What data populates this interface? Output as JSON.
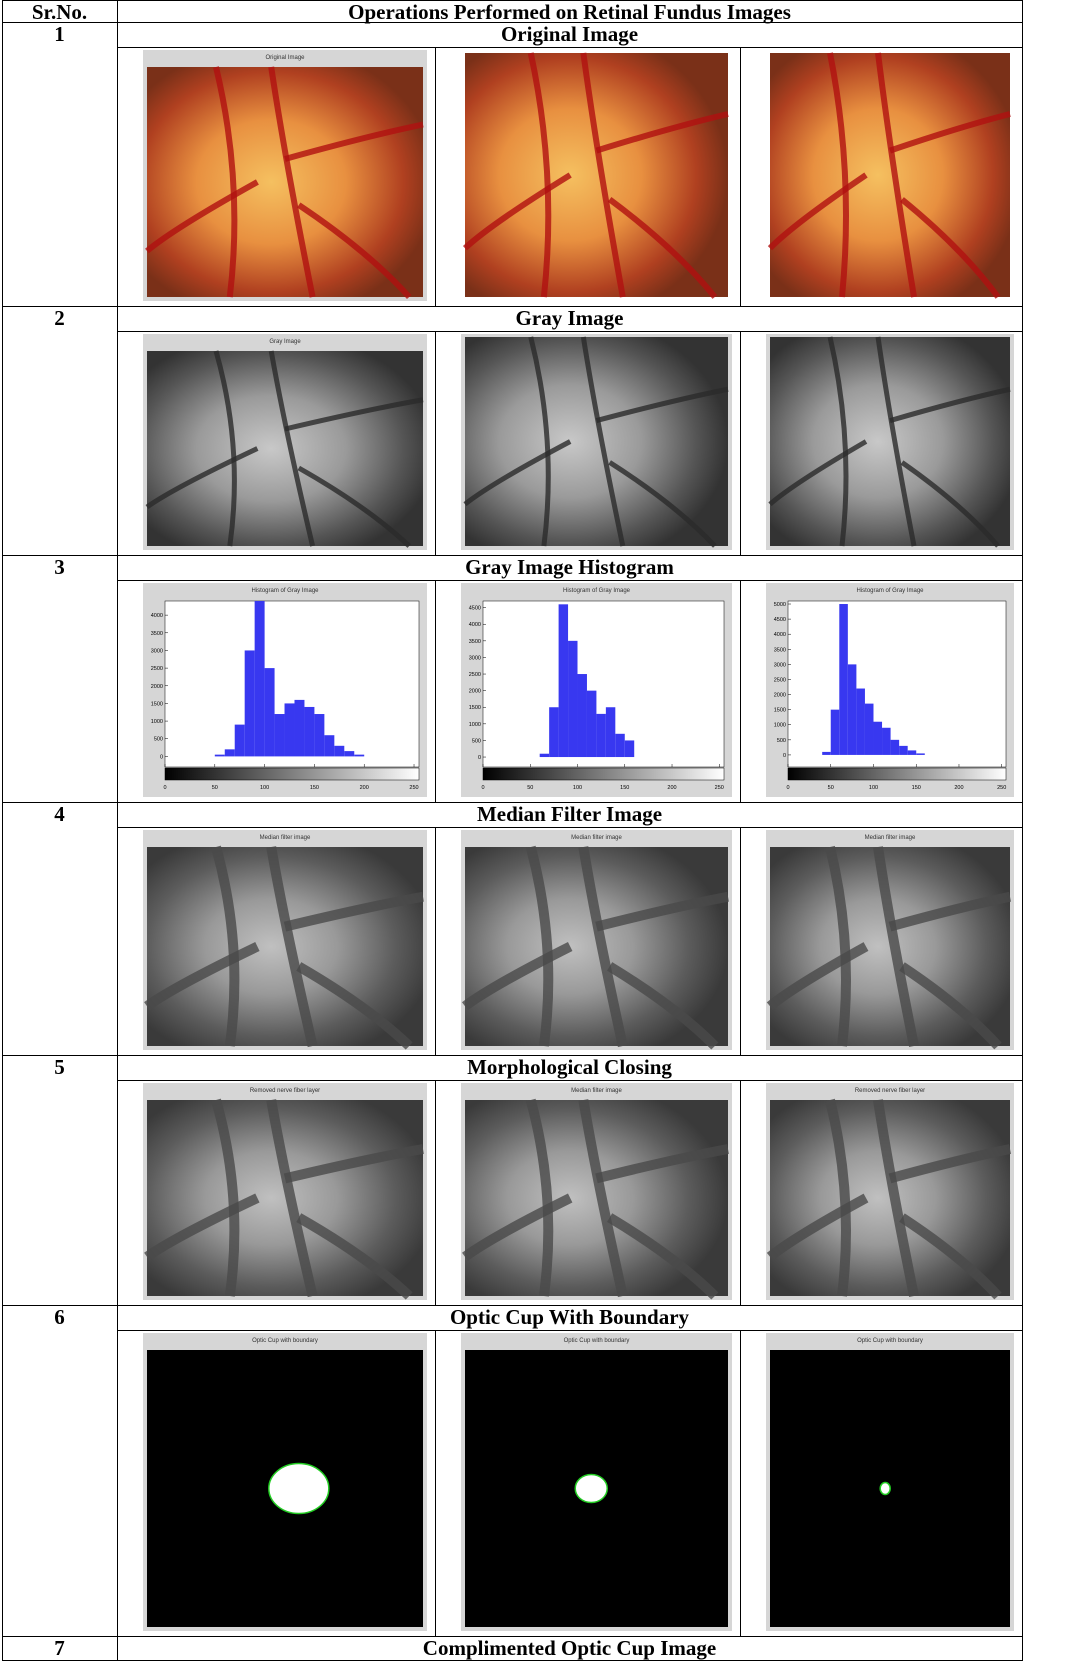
{
  "table": {
    "header": {
      "number": "Sr.No.",
      "operation": "Operations Performed on Retinal Fundus Images"
    },
    "rows": [
      {
        "number": "1",
        "operation": "Original Image",
        "kind": "fundus",
        "panels": [
          {
            "caption": "Original Image"
          },
          {},
          {}
        ]
      },
      {
        "number": "2",
        "operation": "Gray Image",
        "kind": "gray",
        "panels": [
          {
            "caption": "Gray Image"
          },
          {},
          {}
        ]
      },
      {
        "number": "3",
        "operation": "Gray Image Histogram",
        "kind": "histogram",
        "panels": [
          {
            "caption": "Histogram of Gray Image",
            "xlim": [
              0,
              255
            ],
            "ylim": [
              -300,
              4400
            ],
            "xticks": [
              0,
              50,
              100,
              150,
              200,
              250
            ],
            "yticks": [
              0,
              500,
              1000,
              1500,
              2000,
              2500,
              3000,
              3500,
              4000
            ],
            "bins": [
              0,
              10,
              20,
              30,
              40,
              50,
              60,
              70,
              80,
              90,
              100,
              110,
              120,
              130,
              140,
              150,
              160,
              170,
              180,
              190,
              200,
              210,
              220,
              230,
              240,
              250
            ],
            "counts": [
              0,
              0,
              0,
              0,
              0,
              50,
              200,
              900,
              3000,
              4400,
              2500,
              1200,
              1500,
              1600,
              1400,
              1200,
              600,
              300,
              150,
              50,
              0,
              0,
              0,
              0,
              0
            ]
          },
          {
            "caption": "Histogram of Gray Image",
            "xlim": [
              0,
              255
            ],
            "ylim": [
              -300,
              4700
            ],
            "xticks": [
              0,
              50,
              100,
              150,
              200,
              250
            ],
            "yticks": [
              0,
              500,
              1000,
              1500,
              2000,
              2500,
              3000,
              3500,
              4000,
              4500
            ],
            "bins": [
              0,
              10,
              20,
              30,
              40,
              50,
              60,
              70,
              80,
              90,
              100,
              110,
              120,
              130,
              140,
              150,
              160,
              170,
              180,
              190,
              200,
              210,
              220,
              230,
              240,
              250
            ],
            "counts": [
              0,
              0,
              0,
              0,
              0,
              0,
              100,
              1500,
              4600,
              3500,
              2500,
              2000,
              1300,
              1500,
              700,
              500,
              0,
              0,
              0,
              0,
              0,
              0,
              0,
              0,
              0
            ]
          },
          {
            "caption": "Histogram of Gray Image",
            "xlim": [
              0,
              255
            ],
            "ylim": [
              -400,
              5100
            ],
            "xticks": [
              0,
              50,
              100,
              150,
              200,
              250
            ],
            "yticks": [
              0,
              500,
              1000,
              1500,
              2000,
              2500,
              3000,
              3500,
              4000,
              4500,
              5000
            ],
            "bins": [
              0,
              10,
              20,
              30,
              40,
              50,
              60,
              70,
              80,
              90,
              100,
              110,
              120,
              130,
              140,
              150,
              160,
              170,
              180,
              190,
              200,
              210,
              220,
              230,
              240,
              250
            ],
            "counts": [
              0,
              0,
              0,
              0,
              100,
              1500,
              5000,
              3000,
              2200,
              1700,
              1100,
              900,
              500,
              300,
              150,
              50,
              0,
              0,
              0,
              0,
              0,
              0,
              0,
              0,
              0
            ]
          }
        ]
      },
      {
        "number": "4",
        "operation": "Median Filter Image",
        "kind": "smooth",
        "panels": [
          {
            "caption": "Median filter image"
          },
          {
            "caption": "Median filter image"
          },
          {
            "caption": "Median filter image"
          }
        ]
      },
      {
        "number": "5",
        "operation": "Morphological Closing",
        "kind": "smooth",
        "panels": [
          {
            "caption": "Removed nerve fiber layer"
          },
          {
            "caption": "Median filter image"
          },
          {
            "caption": "Removed nerve fiber layer"
          }
        ]
      },
      {
        "number": "6",
        "operation": "Optic Cup With Boundary",
        "kind": "binary",
        "panels": [
          {
            "caption": "Optic Cup with boundary"
          },
          {
            "caption": "Optic Cup with boundary"
          },
          {
            "caption": "Optic Cup with boundary"
          }
        ]
      },
      {
        "number": "7",
        "operation": "Complimented Optic Cup Image"
      }
    ]
  }
}
